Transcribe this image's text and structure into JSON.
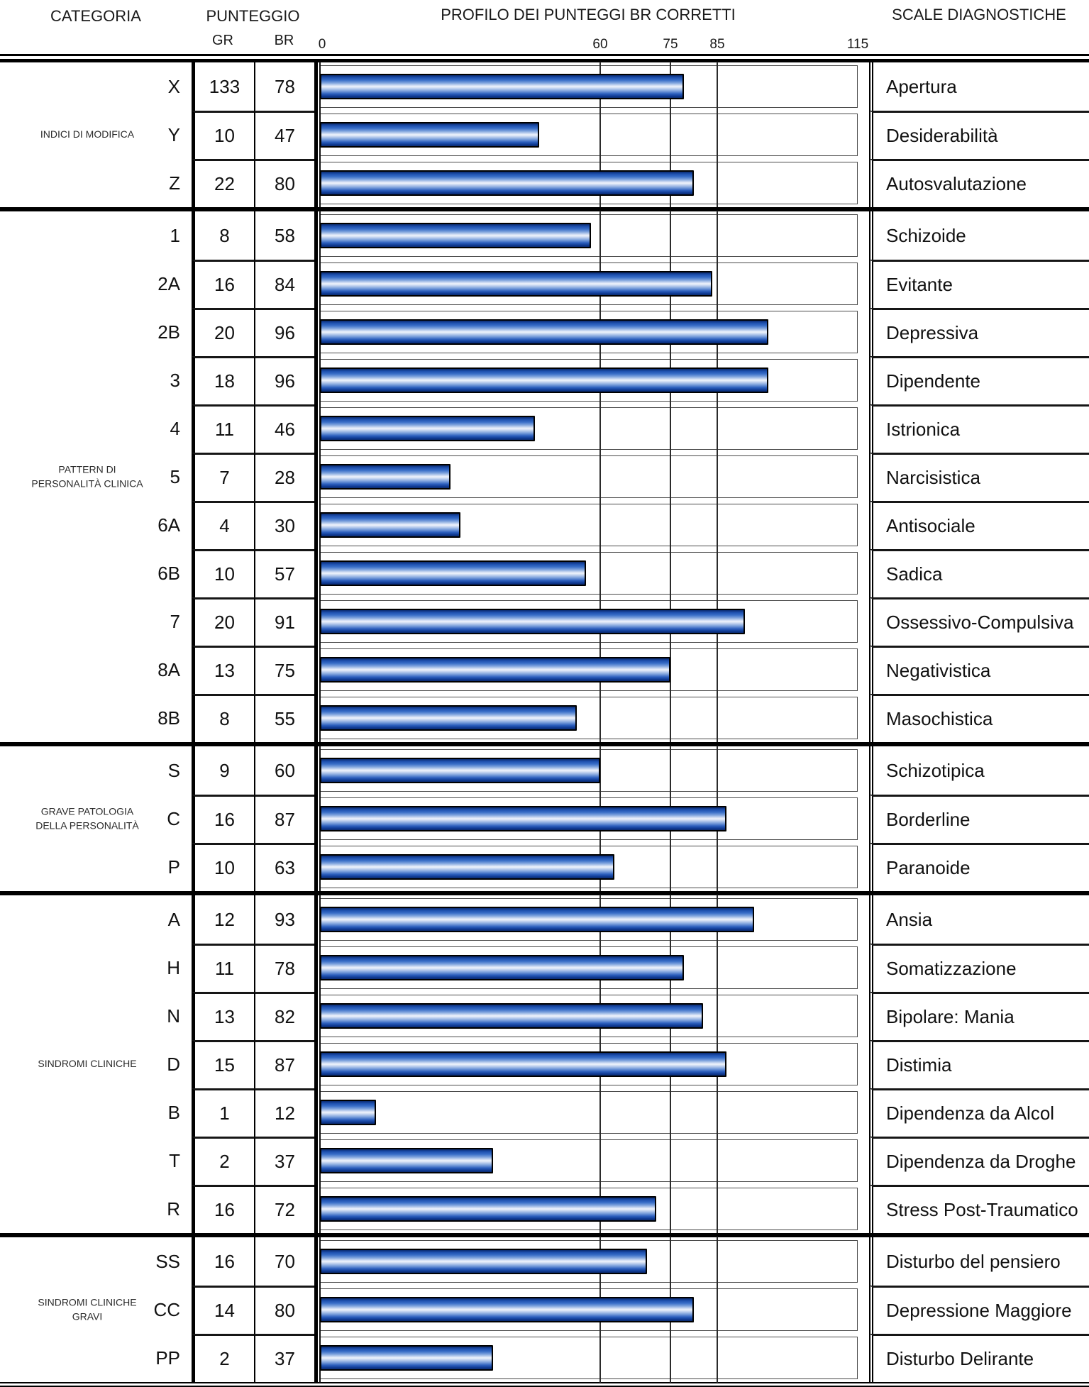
{
  "header": {
    "categoria": "CATEGORIA",
    "punteggio": "PUNTEGGIO",
    "gr": "GR",
    "br": "BR",
    "profilo": "PROFILO DEI PUNTEGGI BR CORRETTI",
    "scale_diagnostiche": "SCALE DIAGNOSTICHE"
  },
  "colors": {
    "bar_edge": "#0a2a6e",
    "bar_highlight": "#f0f4fc",
    "line": "#000000"
  },
  "chart_data": {
    "type": "bar",
    "orientation": "horizontal",
    "title": "PROFILO DEI PUNTEGGI BR CORRETTI",
    "xlim": [
      0,
      115
    ],
    "xticks": [
      0,
      60,
      75,
      85,
      115
    ],
    "gridlines": [
      60,
      75,
      85
    ],
    "grid": true,
    "categories": [
      "X",
      "Y",
      "Z",
      "1",
      "2A",
      "2B",
      "3",
      "4",
      "5",
      "6A",
      "6B",
      "7",
      "8A",
      "8B",
      "S",
      "C",
      "P",
      "A",
      "H",
      "N",
      "D",
      "B",
      "T",
      "R",
      "SS",
      "CC",
      "PP"
    ],
    "labels": [
      "Apertura",
      "Desiderabilità",
      "Autosvalutazione",
      "Schizoide",
      "Evitante",
      "Depressiva",
      "Dipendente",
      "Istrionica",
      "Narcisistica",
      "Antisociale",
      "Sadica",
      "Ossessivo-Compulsiva",
      "Negativistica",
      "Masochistica",
      "Schizotipica",
      "Borderline",
      "Paranoide",
      "Ansia",
      "Somatizzazione",
      "Bipolare: Mania",
      "Distimia",
      "Dipendenza da Alcol",
      "Dipendenza da Droghe",
      "Stress Post-Traumatico",
      "Disturbo del pensiero",
      "Depressione Maggiore",
      "Disturbo Delirante"
    ],
    "series": [
      {
        "name": "GR",
        "values": [
          133,
          10,
          22,
          8,
          16,
          20,
          18,
          11,
          7,
          4,
          10,
          20,
          13,
          8,
          9,
          16,
          10,
          12,
          11,
          13,
          15,
          1,
          2,
          16,
          16,
          14,
          2
        ]
      },
      {
        "name": "BR",
        "values": [
          78,
          47,
          80,
          58,
          84,
          96,
          96,
          46,
          28,
          30,
          57,
          91,
          75,
          55,
          60,
          87,
          63,
          93,
          78,
          82,
          87,
          12,
          37,
          72,
          70,
          80,
          37
        ]
      }
    ],
    "plotted_series": "BR"
  },
  "sections": [
    {
      "category": "INDICI DI MODIFICA",
      "rows": [
        {
          "code": "X",
          "gr": 133,
          "br": 78,
          "scale": "Apertura"
        },
        {
          "code": "Y",
          "gr": 10,
          "br": 47,
          "scale": "Desiderabilità"
        },
        {
          "code": "Z",
          "gr": 22,
          "br": 80,
          "scale": "Autosvalutazione"
        }
      ]
    },
    {
      "category": "PATTERN DI\nPERSONALITÀ CLINICA",
      "rows": [
        {
          "code": "1",
          "gr": 8,
          "br": 58,
          "scale": "Schizoide"
        },
        {
          "code": "2A",
          "gr": 16,
          "br": 84,
          "scale": "Evitante"
        },
        {
          "code": "2B",
          "gr": 20,
          "br": 96,
          "scale": "Depressiva"
        },
        {
          "code": "3",
          "gr": 18,
          "br": 96,
          "scale": "Dipendente"
        },
        {
          "code": "4",
          "gr": 11,
          "br": 46,
          "scale": "Istrionica"
        },
        {
          "code": "5",
          "gr": 7,
          "br": 28,
          "scale": "Narcisistica"
        },
        {
          "code": "6A",
          "gr": 4,
          "br": 30,
          "scale": "Antisociale"
        },
        {
          "code": "6B",
          "gr": 10,
          "br": 57,
          "scale": "Sadica"
        },
        {
          "code": "7",
          "gr": 20,
          "br": 91,
          "scale": "Ossessivo-Compulsiva"
        },
        {
          "code": "8A",
          "gr": 13,
          "br": 75,
          "scale": "Negativistica"
        },
        {
          "code": "8B",
          "gr": 8,
          "br": 55,
          "scale": "Masochistica"
        }
      ]
    },
    {
      "category": "GRAVE PATOLOGIA\nDELLA PERSONALITÀ",
      "rows": [
        {
          "code": "S",
          "gr": 9,
          "br": 60,
          "scale": "Schizotipica"
        },
        {
          "code": "C",
          "gr": 16,
          "br": 87,
          "scale": "Borderline"
        },
        {
          "code": "P",
          "gr": 10,
          "br": 63,
          "scale": "Paranoide"
        }
      ]
    },
    {
      "category": "SINDROMI CLINICHE",
      "rows": [
        {
          "code": "A",
          "gr": 12,
          "br": 93,
          "scale": "Ansia"
        },
        {
          "code": "H",
          "gr": 11,
          "br": 78,
          "scale": "Somatizzazione"
        },
        {
          "code": "N",
          "gr": 13,
          "br": 82,
          "scale": "Bipolare: Mania"
        },
        {
          "code": "D",
          "gr": 15,
          "br": 87,
          "scale": "Distimia"
        },
        {
          "code": "B",
          "gr": 1,
          "br": 12,
          "scale": "Dipendenza da Alcol"
        },
        {
          "code": "T",
          "gr": 2,
          "br": 37,
          "scale": "Dipendenza da Droghe"
        },
        {
          "code": "R",
          "gr": 16,
          "br": 72,
          "scale": "Stress Post-Traumatico"
        }
      ]
    },
    {
      "category": "SINDROMI CLINICHE\nGRAVI",
      "rows": [
        {
          "code": "SS",
          "gr": 16,
          "br": 70,
          "scale": "Disturbo del pensiero"
        },
        {
          "code": "CC",
          "gr": 14,
          "br": 80,
          "scale": "Depressione Maggiore"
        },
        {
          "code": "PP",
          "gr": 2,
          "br": 37,
          "scale": "Disturbo Delirante"
        }
      ]
    }
  ]
}
